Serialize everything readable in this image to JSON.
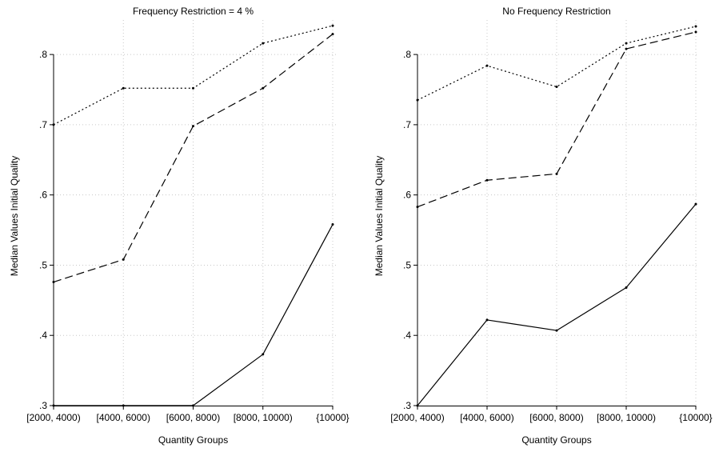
{
  "chart_data": [
    {
      "type": "line",
      "title": "Frequency Restriction = 4 %",
      "xlabel": "Quantity Groups",
      "ylabel": "Median Values Initial Quality",
      "categories": [
        "[2000, 4000)",
        "[4000, 6000)",
        "[6000, 8000)",
        "[8000, 10000)",
        "{10000}"
      ],
      "ylim": [
        0.3,
        0.84
      ],
      "yticks": [
        ".3",
        ".4",
        ".5",
        ".6",
        ".7",
        ".8"
      ],
      "grid": true,
      "series": [
        {
          "style": "solid",
          "values": [
            0.3,
            0.3,
            0.3,
            0.373,
            0.558
          ]
        },
        {
          "style": "dashed",
          "values": [
            0.476,
            0.508,
            0.698,
            0.752,
            0.829
          ]
        },
        {
          "style": "dotted",
          "values": [
            0.7,
            0.752,
            0.752,
            0.816,
            0.841
          ]
        }
      ]
    },
    {
      "type": "line",
      "title": "No Frequency Restriction",
      "xlabel": "Quantity Groups",
      "ylabel": "Median Values Initial Quality",
      "categories": [
        "[2000, 4000)",
        "[4000, 6000)",
        "[6000, 8000)",
        "[8000, 10000)",
        "{10000}"
      ],
      "ylim": [
        0.3,
        0.84
      ],
      "yticks": [
        ".3",
        ".4",
        ".5",
        ".6",
        ".7",
        ".8"
      ],
      "grid": true,
      "series": [
        {
          "style": "solid",
          "values": [
            0.3,
            0.422,
            0.407,
            0.468,
            0.587
          ]
        },
        {
          "style": "dashed",
          "values": [
            0.583,
            0.621,
            0.63,
            0.808,
            0.832
          ]
        },
        {
          "style": "dotted",
          "values": [
            0.735,
            0.784,
            0.754,
            0.816,
            0.84
          ]
        }
      ]
    }
  ]
}
